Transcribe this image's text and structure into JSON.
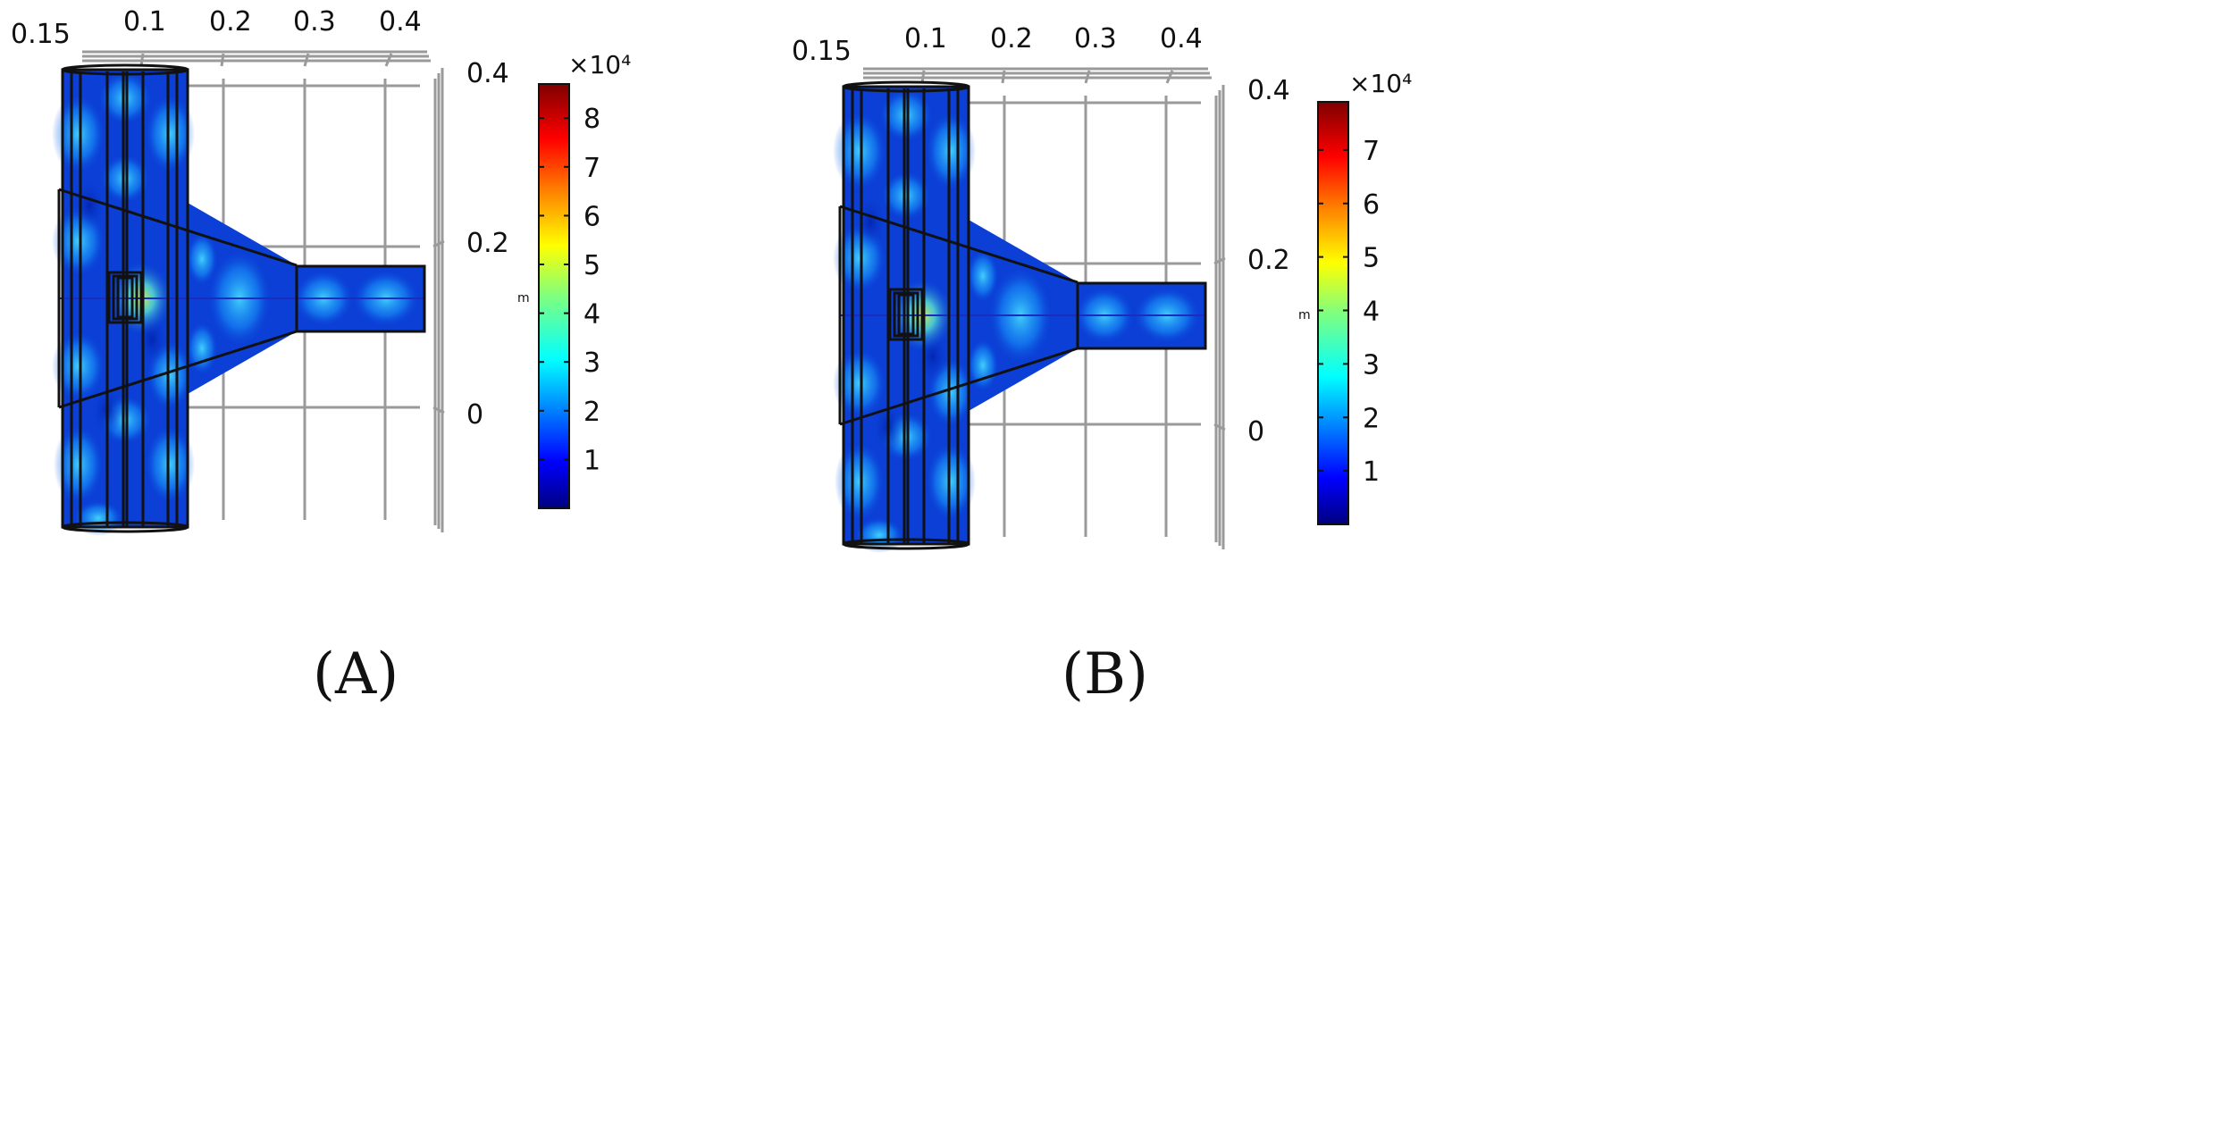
{
  "panels": [
    {
      "caption": "(A)",
      "x_ticks": [
        "0.15",
        "0.1",
        "0.2",
        "0.3",
        "0.4"
      ],
      "y_ticks": [
        "0.4",
        "0.2",
        "0"
      ],
      "colorbar": {
        "multiplier": "×10⁴",
        "unit": "m",
        "ticks": [
          "8",
          "7",
          "6",
          "5",
          "4",
          "3",
          "2",
          "1"
        ],
        "max": 8.7
      }
    },
    {
      "caption": "(B)",
      "x_ticks": [
        "0.15",
        "0.1",
        "0.2",
        "0.3",
        "0.4"
      ],
      "y_ticks": [
        "0.4",
        "0.2",
        "0"
      ],
      "colorbar": {
        "multiplier": "×10⁴",
        "unit": "m",
        "ticks": [
          "7",
          "6",
          "5",
          "4",
          "3",
          "2",
          "1"
        ],
        "max": 7.9
      }
    }
  ],
  "colors": {
    "jet": [
      "#00007f",
      "#0000ff",
      "#007fff",
      "#00ffff",
      "#7fff7f",
      "#ffff00",
      "#ff7f00",
      "#ff0000",
      "#7f0000"
    ],
    "field_base": "#0b3fd6",
    "hotspot": "#3fd8ff",
    "peak": "#c8e84a"
  }
}
